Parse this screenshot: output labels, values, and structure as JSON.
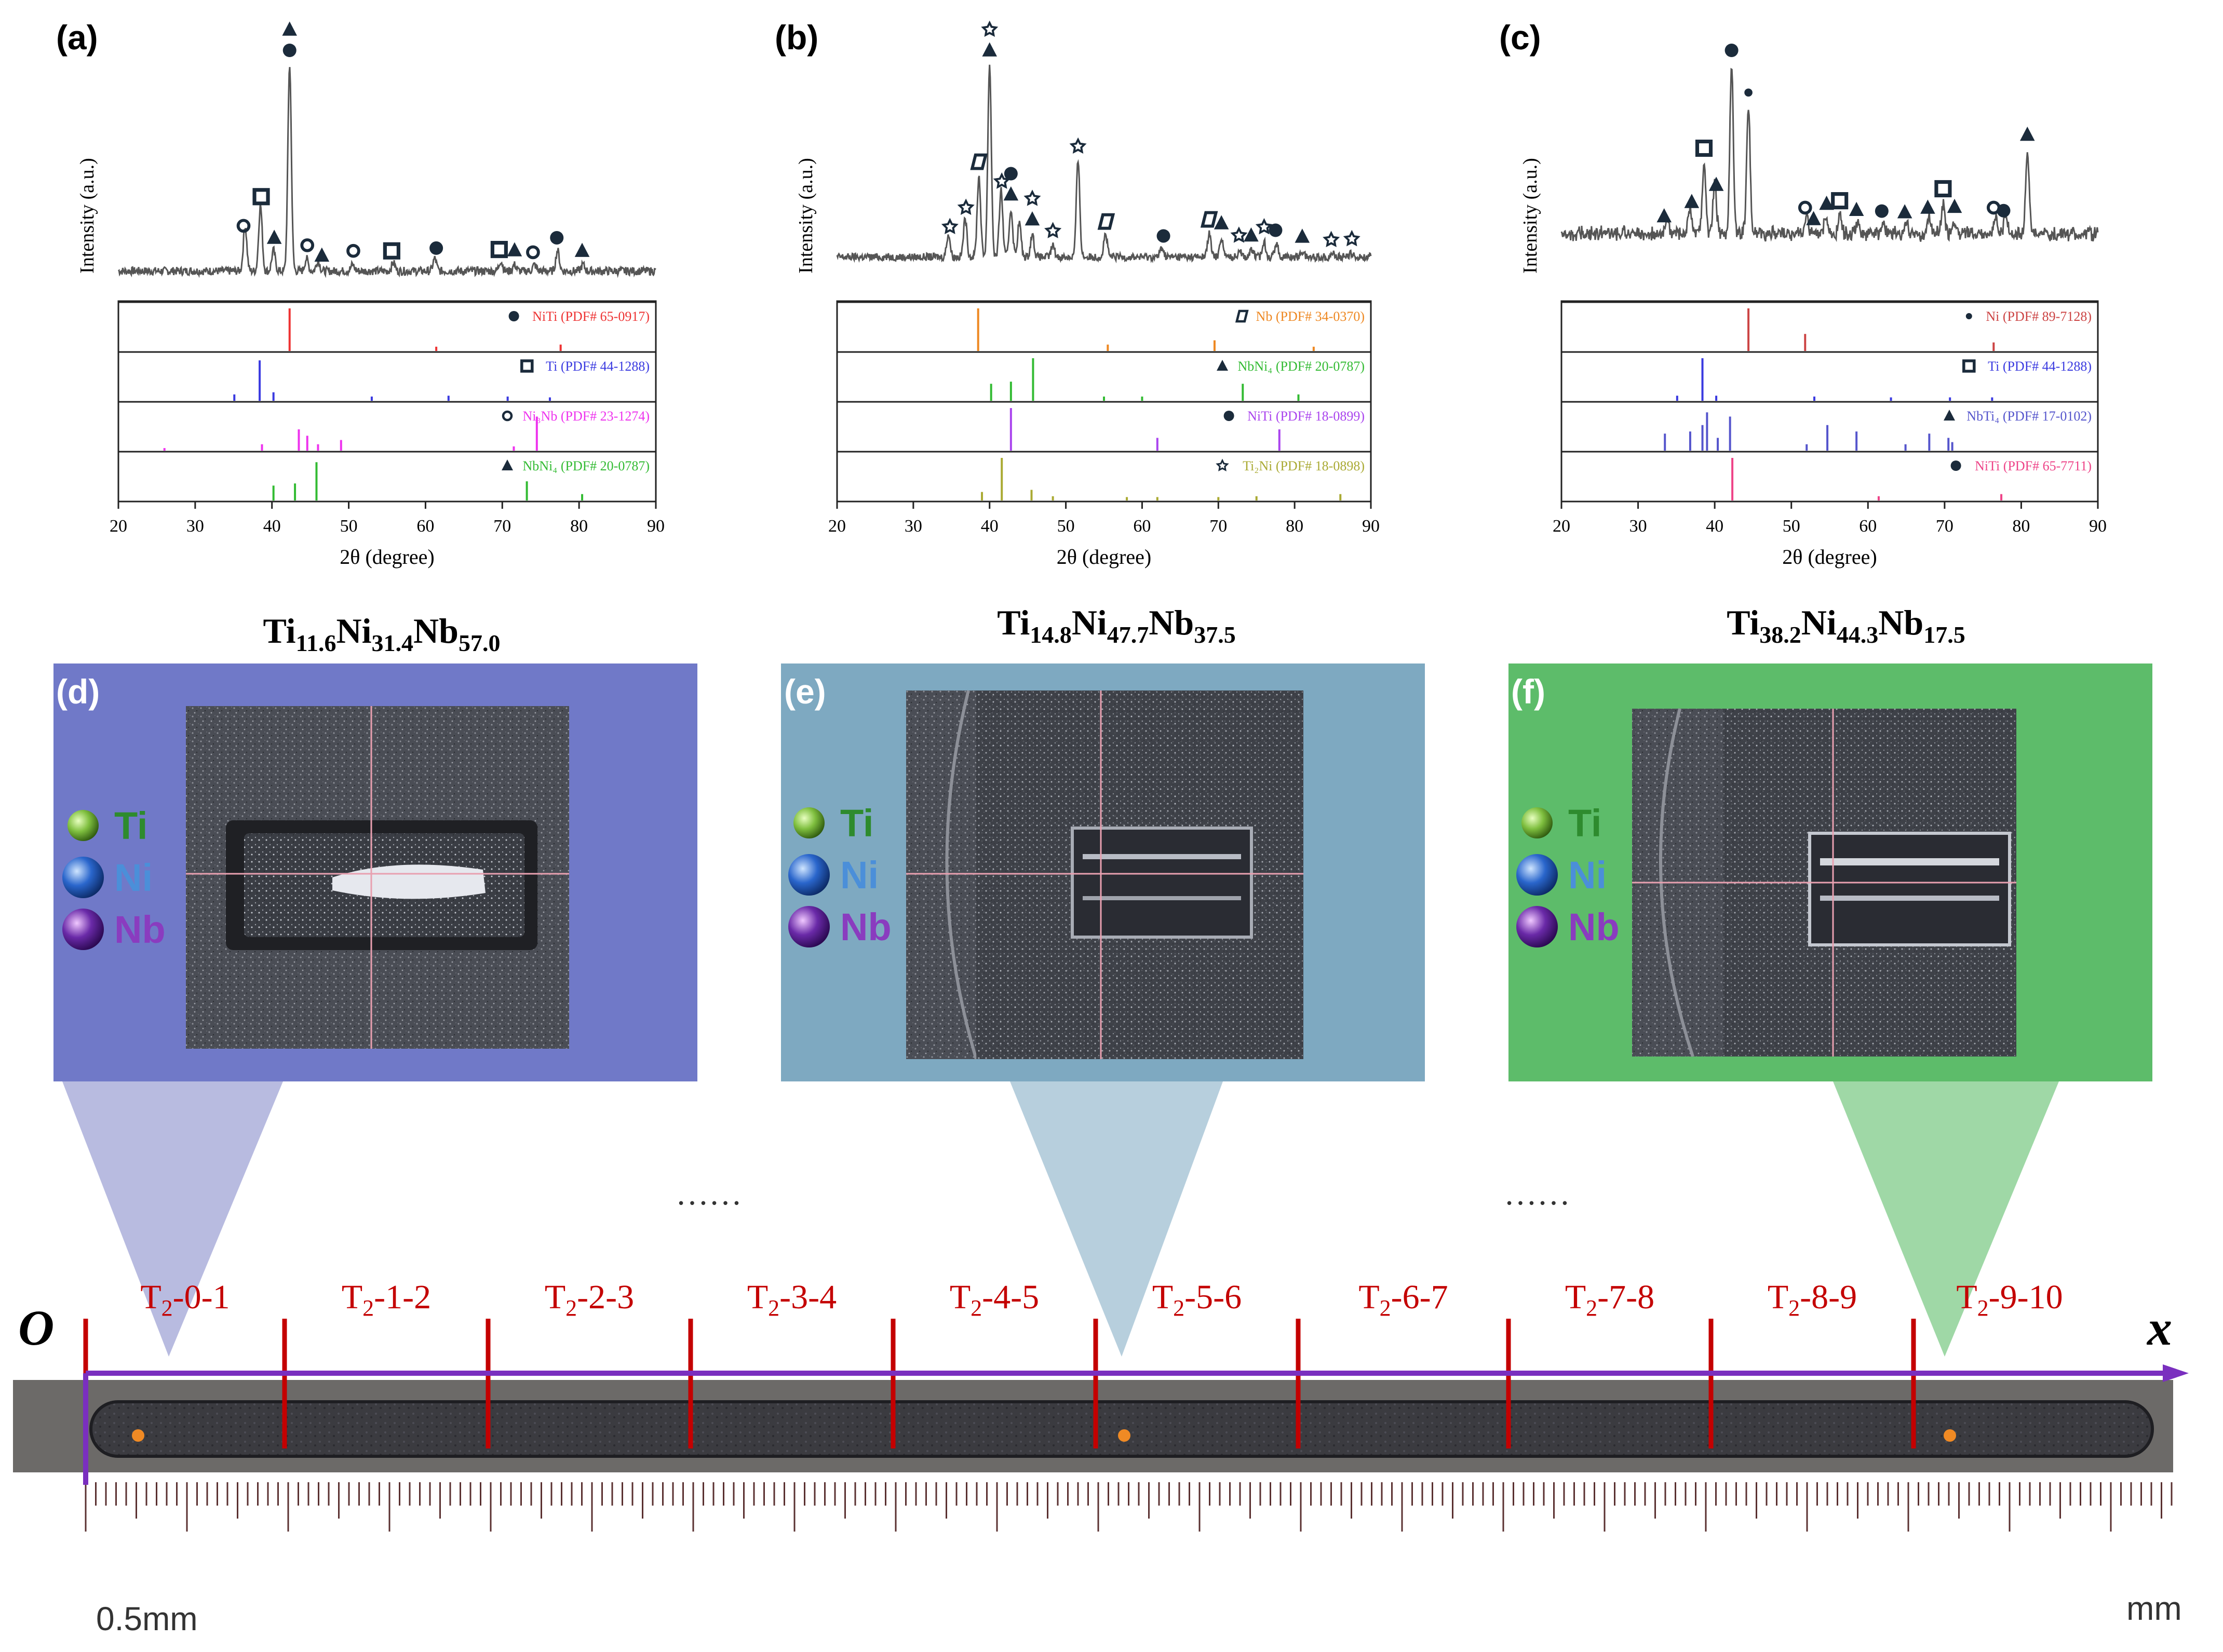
{
  "chart_data": [
    {
      "id": "a",
      "panel_label": "(a)",
      "type": "xrd",
      "composition": {
        "ti": "11.6",
        "ni": "31.4",
        "nb": "57.0"
      },
      "xlabel": "2θ (degree)",
      "ylabel": "Intensity (a.u.)",
      "xlim": [
        20,
        90
      ],
      "xticks": [
        "20",
        "30",
        "40",
        "50",
        "60",
        "70",
        "80",
        "90"
      ],
      "pattern_peaks": [
        [
          36.5,
          0.22
        ],
        [
          38.5,
          0.32
        ],
        [
          40.2,
          0.1
        ],
        [
          42.3,
          1.0
        ],
        [
          44.5,
          0.06
        ],
        [
          46.0,
          0.05
        ],
        [
          50.5,
          0.03
        ],
        [
          55.8,
          0.04
        ],
        [
          61.2,
          0.06
        ],
        [
          69.8,
          0.05
        ],
        [
          71.6,
          0.03
        ],
        [
          74.2,
          0.03
        ],
        [
          77.2,
          0.1
        ],
        [
          80.5,
          0.03
        ]
      ],
      "markers": [
        {
          "x": 36.3,
          "sym": "ring"
        },
        {
          "x": 38.6,
          "sym": "box"
        },
        {
          "x": 40.3,
          "sym": "tri"
        },
        {
          "x": 42.3,
          "sym": "dot"
        },
        {
          "x": 42.3,
          "sym": "tri"
        },
        {
          "x": 44.6,
          "sym": "ring"
        },
        {
          "x": 46.5,
          "sym": "tri"
        },
        {
          "x": 50.6,
          "sym": "ring"
        },
        {
          "x": 55.6,
          "sym": "box"
        },
        {
          "x": 61.4,
          "sym": "dot"
        },
        {
          "x": 69.6,
          "sym": "box"
        },
        {
          "x": 71.6,
          "sym": "tri"
        },
        {
          "x": 74.0,
          "sym": "ring"
        },
        {
          "x": 77.1,
          "sym": "dot"
        },
        {
          "x": 80.4,
          "sym": "tri"
        }
      ],
      "references": [
        {
          "phase": "NiTi",
          "sym": "dot",
          "card": " (PDF# 65-0917)",
          "color": "#ee3333",
          "lines": [
            [
              42.3,
              1.0
            ],
            [
              61.4,
              0.1
            ],
            [
              77.6,
              0.15
            ]
          ]
        },
        {
          "phase": "Ti",
          "sym": "box",
          "card": " (PDF# 44-1288)",
          "color": "#3a3ae0",
          "lines": [
            [
              35.1,
              0.15
            ],
            [
              38.4,
              0.95
            ],
            [
              40.2,
              0.2
            ],
            [
              53.0,
              0.1
            ],
            [
              63.0,
              0.12
            ],
            [
              70.7,
              0.1
            ],
            [
              76.2,
              0.08
            ]
          ]
        },
        {
          "phase": "Ni₃Nb",
          "sym": "ring",
          "card": " (PDF# 23-1274)",
          "color": "#ee33ee",
          "lines": [
            [
              26.0,
              0.06
            ],
            [
              38.7,
              0.15
            ],
            [
              43.5,
              0.5
            ],
            [
              44.6,
              0.35
            ],
            [
              46.0,
              0.15
            ],
            [
              49.0,
              0.25
            ],
            [
              71.5,
              0.1
            ],
            [
              74.5,
              0.8
            ]
          ]
        },
        {
          "phase": "NbNi₄",
          "sym": "tri",
          "card": " (PDF# 20-0787)",
          "color": "#33bb33",
          "lines": [
            [
              40.2,
              0.35
            ],
            [
              43.0,
              0.4
            ],
            [
              45.8,
              0.9
            ],
            [
              73.2,
              0.45
            ],
            [
              80.4,
              0.15
            ]
          ]
        }
      ]
    },
    {
      "id": "b",
      "panel_label": "(b)",
      "type": "xrd",
      "composition": {
        "ti": "14.8",
        "ni": "47.7",
        "nb": "37.5"
      },
      "xlabel": "2θ (degree)",
      "ylabel": "Intensity (a.u.)",
      "xlim": [
        20,
        90
      ],
      "xticks": [
        "20",
        "30",
        "40",
        "50",
        "60",
        "70",
        "80",
        "90"
      ],
      "pattern_peaks": [
        [
          34.6,
          0.12
        ],
        [
          36.8,
          0.2
        ],
        [
          38.6,
          0.42
        ],
        [
          40.0,
          1.0
        ],
        [
          41.5,
          0.35
        ],
        [
          42.8,
          0.25
        ],
        [
          43.9,
          0.18
        ],
        [
          45.6,
          0.12
        ],
        [
          48.3,
          0.06
        ],
        [
          51.6,
          0.5
        ],
        [
          55.2,
          0.12
        ],
        [
          62.6,
          0.05
        ],
        [
          68.8,
          0.12
        ],
        [
          70.4,
          0.1
        ],
        [
          72.8,
          0.04
        ],
        [
          74.4,
          0.04
        ],
        [
          76.0,
          0.08
        ],
        [
          77.6,
          0.07
        ],
        [
          81.0,
          0.03
        ],
        [
          85.0,
          0.02
        ],
        [
          87.4,
          0.02
        ]
      ],
      "markers": [
        {
          "x": 34.8,
          "sym": "star"
        },
        {
          "x": 36.9,
          "sym": "star"
        },
        {
          "x": 38.6,
          "sym": "rhomb"
        },
        {
          "x": 40.0,
          "sym": "tri"
        },
        {
          "x": 40.0,
          "sym": "star"
        },
        {
          "x": 41.6,
          "sym": "star"
        },
        {
          "x": 42.8,
          "sym": "tri"
        },
        {
          "x": 42.8,
          "sym": "dot"
        },
        {
          "x": 45.6,
          "sym": "tri"
        },
        {
          "x": 45.6,
          "sym": "star"
        },
        {
          "x": 48.3,
          "sym": "star"
        },
        {
          "x": 51.6,
          "sym": "star"
        },
        {
          "x": 55.3,
          "sym": "rhomb"
        },
        {
          "x": 62.8,
          "sym": "dot"
        },
        {
          "x": 68.8,
          "sym": "rhomb"
        },
        {
          "x": 70.4,
          "sym": "tri"
        },
        {
          "x": 72.7,
          "sym": "star"
        },
        {
          "x": 74.3,
          "sym": "tri"
        },
        {
          "x": 76.0,
          "sym": "star"
        },
        {
          "x": 77.5,
          "sym": "dot"
        },
        {
          "x": 81.0,
          "sym": "tri"
        },
        {
          "x": 84.8,
          "sym": "star"
        },
        {
          "x": 87.5,
          "sym": "star"
        }
      ],
      "references": [
        {
          "phase": "Nb",
          "sym": "rhomb",
          "card": " (PDF# 34-0370)",
          "color": "#ee8822",
          "lines": [
            [
              38.5,
              1.0
            ],
            [
              55.5,
              0.15
            ],
            [
              69.5,
              0.25
            ],
            [
              82.5,
              0.1
            ]
          ]
        },
        {
          "phase": "NbNi₄",
          "sym": "tri",
          "card": " (PDF# 20-0787)",
          "color": "#33bb33",
          "lines": [
            [
              40.2,
              0.4
            ],
            [
              42.8,
              0.45
            ],
            [
              45.7,
              1.0
            ],
            [
              55.0,
              0.1
            ],
            [
              60.0,
              0.1
            ],
            [
              73.2,
              0.4
            ],
            [
              80.5,
              0.15
            ]
          ]
        },
        {
          "phase": "NiTi",
          "sym": "dot",
          "card": " (PDF# 18-0899)",
          "color": "#aa44ee",
          "lines": [
            [
              42.8,
              1.0
            ],
            [
              62.0,
              0.3
            ],
            [
              78.0,
              0.5
            ]
          ]
        },
        {
          "phase": "Ti₂Ni",
          "sym": "star",
          "card": " (PDF# 18-0898)",
          "color": "#aaaa33",
          "lines": [
            [
              39.0,
              0.2
            ],
            [
              41.6,
              1.0
            ],
            [
              45.5,
              0.25
            ],
            [
              48.3,
              0.1
            ],
            [
              58.0,
              0.08
            ],
            [
              62.0,
              0.08
            ],
            [
              70.0,
              0.08
            ],
            [
              75.0,
              0.1
            ],
            [
              86.0,
              0.15
            ]
          ]
        }
      ]
    },
    {
      "id": "c",
      "panel_label": "(c)",
      "type": "xrd",
      "composition": {
        "ti": "38.2",
        "ni": "44.3",
        "nb": "17.5"
      },
      "xlabel": "2θ (degree)",
      "ylabel": "Intensity (a.u.)",
      "xlim": [
        20,
        90
      ],
      "xticks": [
        "20",
        "30",
        "40",
        "50",
        "60",
        "70",
        "80",
        "90"
      ],
      "pattern_peaks": [
        [
          33.8,
          0.08
        ],
        [
          36.8,
          0.15
        ],
        [
          38.6,
          0.42
        ],
        [
          40.0,
          0.3
        ],
        [
          42.2,
          1.0
        ],
        [
          44.4,
          0.75
        ],
        [
          52.0,
          0.1
        ],
        [
          54.5,
          0.1
        ],
        [
          56.4,
          0.12
        ],
        [
          58.6,
          0.06
        ],
        [
          62.0,
          0.07
        ],
        [
          65.0,
          0.06
        ],
        [
          68.0,
          0.1
        ],
        [
          69.8,
          0.18
        ],
        [
          71.2,
          0.08
        ],
        [
          76.6,
          0.1
        ],
        [
          78.0,
          0.12
        ],
        [
          80.8,
          0.5
        ]
      ],
      "markers": [
        {
          "x": 33.4,
          "sym": "tri"
        },
        {
          "x": 37.0,
          "sym": "tri"
        },
        {
          "x": 38.6,
          "sym": "box"
        },
        {
          "x": 40.2,
          "sym": "tri"
        },
        {
          "x": 42.2,
          "sym": "dot"
        },
        {
          "x": 44.4,
          "sym": "dotsm"
        },
        {
          "x": 51.8,
          "sym": "ring"
        },
        {
          "x": 52.9,
          "sym": "tri"
        },
        {
          "x": 54.6,
          "sym": "tri"
        },
        {
          "x": 56.3,
          "sym": "box"
        },
        {
          "x": 58.5,
          "sym": "tri"
        },
        {
          "x": 61.8,
          "sym": "dot"
        },
        {
          "x": 64.8,
          "sym": "tri"
        },
        {
          "x": 67.8,
          "sym": "tri"
        },
        {
          "x": 69.8,
          "sym": "box"
        },
        {
          "x": 71.3,
          "sym": "tri"
        },
        {
          "x": 76.4,
          "sym": "ring"
        },
        {
          "x": 77.7,
          "sym": "dot"
        },
        {
          "x": 80.8,
          "sym": "tri"
        }
      ],
      "references": [
        {
          "phase": "Ni",
          "sym": "dotsm",
          "card": " (PDF# 89-7128)",
          "color": "#cc4444",
          "lines": [
            [
              44.4,
              1.0
            ],
            [
              51.8,
              0.4
            ],
            [
              76.4,
              0.2
            ]
          ]
        },
        {
          "phase": "Ti",
          "sym": "box",
          "card": " (PDF# 44-1288)",
          "color": "#3a3ae0",
          "lines": [
            [
              35.1,
              0.12
            ],
            [
              38.4,
              1.0
            ],
            [
              40.2,
              0.12
            ],
            [
              53.0,
              0.1
            ],
            [
              63.0,
              0.08
            ],
            [
              70.7,
              0.08
            ],
            [
              76.2,
              0.08
            ]
          ]
        },
        {
          "phase": "NbTi₄",
          "sym": "tri",
          "card": " (PDF# 17-0102)",
          "color": "#5555cc",
          "lines": [
            [
              33.5,
              0.4
            ],
            [
              36.8,
              0.45
            ],
            [
              38.4,
              0.6
            ],
            [
              39.0,
              0.9
            ],
            [
              40.4,
              0.3
            ],
            [
              42.0,
              0.8
            ],
            [
              52.0,
              0.15
            ],
            [
              54.7,
              0.6
            ],
            [
              58.5,
              0.45
            ],
            [
              64.9,
              0.15
            ],
            [
              68.0,
              0.4
            ],
            [
              70.5,
              0.3
            ],
            [
              71.0,
              0.2
            ]
          ]
        },
        {
          "phase": "NiTi",
          "sym": "dot",
          "card": " (PDF# 65-7711)",
          "color": "#ee4488",
          "lines": [
            [
              42.3,
              1.0
            ],
            [
              61.4,
              0.1
            ],
            [
              77.4,
              0.15
            ]
          ]
        }
      ]
    }
  ],
  "micrographs": [
    {
      "label": "(d)",
      "bg": "#7079c8",
      "theme": "blob"
    },
    {
      "label": "(e)",
      "bg": "#7ea9c1",
      "theme": "rect"
    },
    {
      "label": "(f)",
      "bg": "#5dbc6a",
      "theme": "rect"
    }
  ],
  "legend_elements": [
    {
      "symbol": "Ti",
      "color": "#2e8b2e",
      "ball": "#7fbf3f"
    },
    {
      "symbol": "Ni",
      "color": "#4b8fd9",
      "ball": "#2a66cc"
    },
    {
      "symbol": "Nb",
      "color": "#8a3cbf",
      "ball": "#6a2aa8"
    }
  ],
  "strip": {
    "segment_labels": [
      "0-1",
      "1-2",
      "2-3",
      "3-4",
      "4-5",
      "5-6",
      "6-7",
      "7-8",
      "8-9",
      "9-10"
    ],
    "label_prefix": "T",
    "label_subscript": "2",
    "label_dash": "-",
    "origin_label": "O",
    "axis_label": "x",
    "dots_text": "……",
    "scale_label": "0.5mm",
    "unit_label": "mm"
  }
}
